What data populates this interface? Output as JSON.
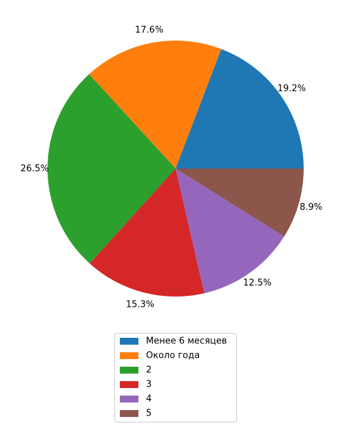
{
  "chart_data": {
    "type": "pie",
    "categories": [
      "Менее 6 месяцев",
      "Около года",
      "2",
      "3",
      "4",
      "5"
    ],
    "values": [
      19.2,
      17.6,
      26.5,
      15.3,
      12.5,
      8.9
    ],
    "labels": [
      "19.2%",
      "17.6%",
      "26.5%",
      "15.3%",
      "12.5%",
      "8.9%"
    ],
    "colors": [
      "#1f77b4",
      "#ff7f0e",
      "#2ca02c",
      "#d62728",
      "#9467bd",
      "#8c564b"
    ],
    "start_angle_deg": 0,
    "direction": "counterclockwise",
    "legend": {
      "position": "bottom",
      "entries": [
        "Менее 6 месяцев",
        "Около года",
        "2",
        "3",
        "4",
        "5"
      ]
    }
  }
}
